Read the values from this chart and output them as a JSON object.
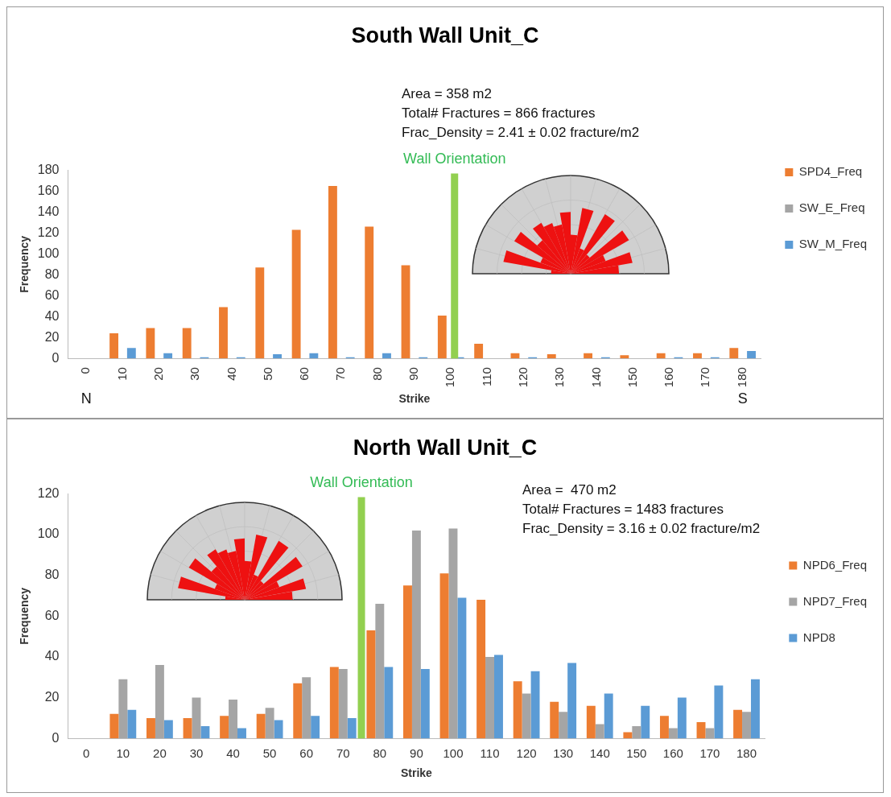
{
  "chart_data": [
    {
      "type": "bar",
      "title": "South Wall Unit_C",
      "xlabel": "Strike",
      "ylabel": "Frequency",
      "x": [
        0,
        10,
        20,
        30,
        40,
        50,
        60,
        70,
        80,
        90,
        100,
        110,
        120,
        130,
        140,
        150,
        160,
        170,
        180
      ],
      "series": [
        {
          "name": "SPD4_Freq",
          "color": "#ed7d31",
          "values": [
            0,
            24,
            29,
            29,
            49,
            87,
            123,
            165,
            126,
            89,
            41,
            14,
            5,
            4,
            5,
            3,
            5,
            5,
            10
          ]
        },
        {
          "name": "SW_E_Freq",
          "color": "#a5a5a5",
          "values": [
            0,
            0,
            0,
            0,
            0,
            0,
            0,
            0,
            0,
            0,
            0,
            0,
            0,
            0,
            0,
            0,
            0,
            0,
            0
          ]
        },
        {
          "name": "SW_M_Freq",
          "color": "#5b9bd5",
          "values": [
            0,
            10,
            5,
            1,
            1,
            4,
            5,
            1,
            5,
            1,
            1,
            0,
            1,
            0,
            1,
            0,
            1,
            1,
            7
          ]
        }
      ],
      "xlim": [
        -5,
        185
      ],
      "xticks": [
        0,
        10,
        20,
        30,
        40,
        50,
        60,
        70,
        80,
        90,
        100,
        110,
        120,
        130,
        140,
        150,
        160,
        170,
        180
      ],
      "ylim": [
        0,
        180
      ],
      "yticks": [
        0,
        20,
        40,
        60,
        80,
        100,
        120,
        140,
        160,
        180
      ],
      "ref_lines": [
        {
          "axis": "x",
          "value": 101,
          "label": "Wall Orientation",
          "color": "#92d050"
        }
      ],
      "annotations": [
        "Area = 358 m2",
        "Total# Fractures = 866 fractures",
        "Frac_Density = 2.41 ± 0.02 fracture/m2",
        "N",
        "S"
      ],
      "legend": "right",
      "grid": false
    },
    {
      "type": "bar",
      "title": "North Wall Unit_C",
      "xlabel": "Strike",
      "ylabel": "Frequency",
      "x": [
        0,
        10,
        20,
        30,
        40,
        50,
        60,
        70,
        80,
        90,
        100,
        110,
        120,
        130,
        140,
        150,
        160,
        170,
        180
      ],
      "series": [
        {
          "name": "NPD6_Freq",
          "color": "#ed7d31",
          "values": [
            0,
            12,
            10,
            10,
            11,
            12,
            27,
            35,
            53,
            75,
            81,
            68,
            28,
            18,
            16,
            3,
            11,
            8,
            14
          ]
        },
        {
          "name": "NPD7_Freq",
          "color": "#a5a5a5",
          "values": [
            0,
            29,
            36,
            20,
            19,
            15,
            30,
            34,
            66,
            102,
            103,
            40,
            22,
            13,
            7,
            6,
            5,
            5,
            13
          ]
        },
        {
          "name": "NPD8",
          "color": "#5b9bd5",
          "values": [
            0,
            14,
            9,
            6,
            5,
            9,
            11,
            10,
            35,
            34,
            69,
            41,
            33,
            37,
            22,
            16,
            20,
            26,
            29
          ]
        }
      ],
      "xlim": [
        -5,
        185
      ],
      "xticks": [
        0,
        10,
        20,
        30,
        40,
        50,
        60,
        70,
        80,
        90,
        100,
        110,
        120,
        130,
        140,
        150,
        160,
        170,
        180
      ],
      "ylim": [
        0,
        120
      ],
      "yticks": [
        0,
        20,
        40,
        60,
        80,
        100,
        120
      ],
      "ref_lines": [
        {
          "axis": "x",
          "value": 75,
          "label": "Wall Orientation",
          "color": "#92d050"
        }
      ],
      "annotations": [
        "Area =  470 m2",
        "Total# Fractures = 1483 fractures",
        "Frac_Density = 3.16 ± 0.02 fracture/m2"
      ],
      "legend": "right",
      "grid": false
    }
  ]
}
